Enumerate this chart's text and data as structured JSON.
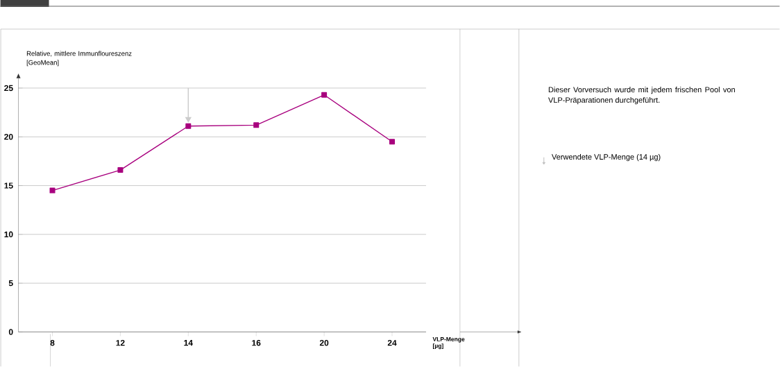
{
  "chart_data": {
    "type": "line",
    "ylabel": "Relative, mittlere Immunfloureszenz [GeoMean]",
    "xlabel": "VLP-Menge [µg]",
    "categories": [
      "8",
      "12",
      "14",
      "16",
      "20",
      "24"
    ],
    "series": [
      {
        "color": "#a8007e",
        "values": [
          14.5,
          16.6,
          21.1,
          21.2,
          24.3,
          19.5
        ]
      }
    ],
    "ylim": [
      0,
      26
    ],
    "yticks": [
      0,
      5,
      10,
      15,
      20,
      25
    ],
    "grid": "y",
    "marker": "square",
    "line_style": "solid",
    "annotations": [
      "Dieser Vorversuch wurde mit jedem frischen Pool von VLP-Präparationen durchgeführt.",
      "Verwendete VLP-Menge (14 µg)"
    ]
  }
}
